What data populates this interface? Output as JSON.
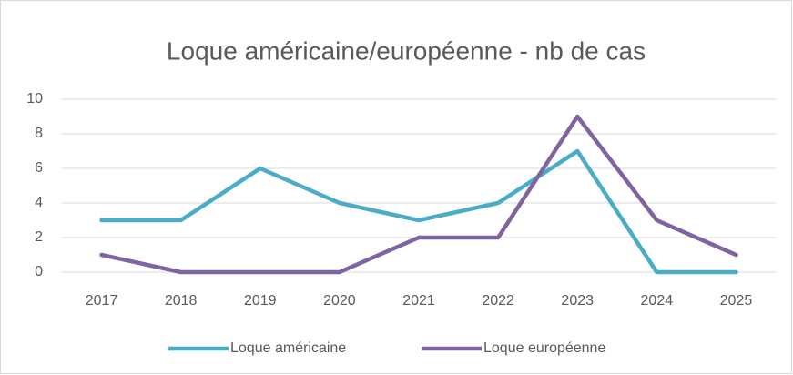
{
  "chart_data": {
    "type": "line",
    "title": "Loque américaine/européenne - nb de cas",
    "categories": [
      "2017",
      "2018",
      "2019",
      "2020",
      "2021",
      "2022",
      "2023",
      "2024",
      "2025"
    ],
    "series": [
      {
        "name": "Loque américaine",
        "color": "#4bacc6",
        "values": [
          3,
          3,
          6,
          4,
          3,
          4,
          7,
          0,
          0
        ]
      },
      {
        "name": "Loque européenne",
        "color": "#8064a2",
        "values": [
          1,
          0,
          0,
          0,
          2,
          2,
          9,
          3,
          1
        ]
      }
    ],
    "ylim": [
      0,
      10
    ],
    "yticks": [
      0,
      2,
      4,
      6,
      8,
      10
    ],
    "grid": true,
    "legend": "bottom"
  }
}
